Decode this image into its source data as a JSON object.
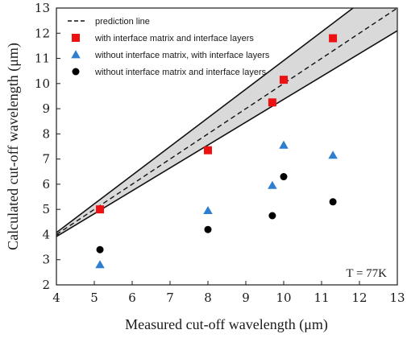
{
  "chart_data": {
    "type": "scatter",
    "title": "",
    "xlabel": "Measured cut-off wavelength (μm)",
    "ylabel": "Calculated cut-off wavelength (μm)",
    "xlim": [
      4,
      13
    ],
    "ylim": [
      2,
      13
    ],
    "xticks": [
      "4",
      "5",
      "6",
      "7",
      "8",
      "9",
      "10",
      "11",
      "12",
      "13"
    ],
    "yticks": [
      "2",
      "3",
      "4",
      "5",
      "6",
      "7",
      "8",
      "9",
      "10",
      "11",
      "12",
      "13"
    ],
    "grid": false,
    "legend_position": "top-left",
    "annotation": "T = 77K",
    "prediction_band": {
      "name": "prediction line",
      "center": [
        [
          4,
          4
        ],
        [
          13,
          13
        ]
      ],
      "upper": [
        [
          4,
          4.08
        ],
        [
          11.83,
          13
        ]
      ],
      "lower": [
        [
          4,
          3.92
        ],
        [
          13,
          12.1
        ]
      ],
      "fill_color": "#d9d9d9"
    },
    "series": [
      {
        "name": "with interface matrix and interface layers",
        "marker": "square",
        "color": "#ee1111",
        "x": [
          5.15,
          8.0,
          9.7,
          10.0,
          11.3
        ],
        "y": [
          5.0,
          7.35,
          9.25,
          10.15,
          11.8
        ]
      },
      {
        "name": "without interface matrix, with interface layers",
        "marker": "triangle",
        "color": "#2f7fd0",
        "x": [
          5.15,
          8.0,
          9.7,
          10.0,
          11.3
        ],
        "y": [
          2.8,
          4.95,
          5.95,
          7.55,
          7.15
        ]
      },
      {
        "name": "without interface matrix and interface layers",
        "marker": "circle",
        "color": "#000000",
        "x": [
          5.15,
          8.0,
          9.7,
          10.0,
          11.3
        ],
        "y": [
          3.4,
          4.2,
          4.75,
          6.3,
          5.3
        ]
      }
    ]
  }
}
